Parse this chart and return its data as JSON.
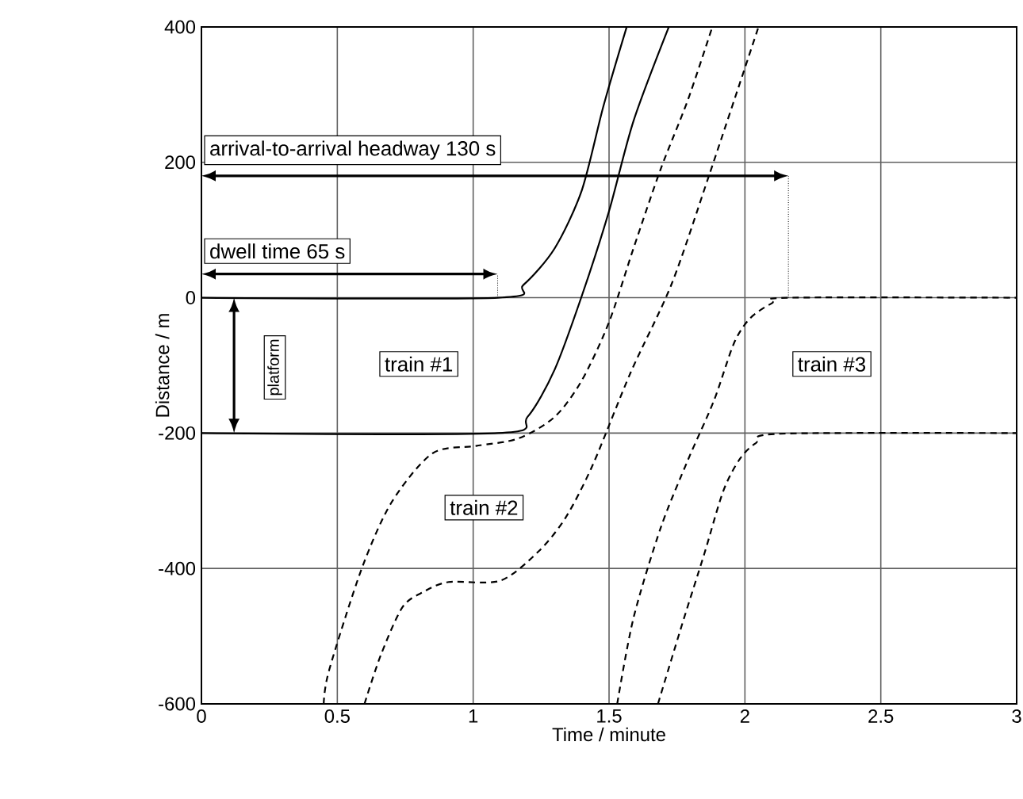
{
  "chart_data": {
    "type": "line",
    "xlabel": "Time / minute",
    "ylabel": "Distance / m",
    "xlim": [
      0,
      3
    ],
    "ylim": [
      -600,
      400
    ],
    "xticks": [
      0,
      0.5,
      1,
      1.5,
      2,
      2.5,
      3
    ],
    "yticks": [
      -600,
      -400,
      -200,
      0,
      200,
      400
    ],
    "grid": true,
    "series": [
      {
        "color": "#000000",
        "line_style": "solid",
        "x": [
          0,
          1.09,
          1.185,
          1.3,
          1.4,
          1.48,
          1.565
        ],
        "values": [
          0,
          0,
          19,
          73,
          159,
          284,
          400
        ]
      },
      {
        "color": "#000000",
        "line_style": "solid",
        "x": [
          0,
          1.09,
          1.2,
          1.3,
          1.4,
          1.5,
          1.59,
          1.72
        ],
        "values": [
          -200,
          -200,
          -176,
          -106,
          3,
          128,
          261,
          400
        ]
      },
      {
        "color": "#000000",
        "line_style": "dashed",
        "x": [
          0.45,
          0.47,
          0.59,
          0.7,
          0.85,
          1.01,
          1.166,
          1.3,
          1.4,
          1.5,
          1.59,
          1.69,
          1.79,
          1.88
        ],
        "values": [
          -600,
          -550,
          -400,
          -302,
          -230,
          -219,
          -208,
          -176,
          -122,
          -36,
          73,
          190,
          292,
          400
        ]
      },
      {
        "color": "#000000",
        "line_style": "dashed",
        "x": [
          0.6,
          0.66,
          0.74,
          0.82,
          0.91,
          1.1,
          1.24,
          1.34,
          1.44,
          1.58,
          1.73,
          1.87,
          2.05
        ],
        "values": [
          -600,
          -528,
          -457,
          -434,
          -420,
          -418,
          -375,
          -325,
          -247,
          -110,
          20,
          183,
          400
        ]
      },
      {
        "color": "#000000",
        "line_style": "dashed",
        "x": [
          1.53,
          1.59,
          1.69,
          1.79,
          1.885,
          1.96,
          2.02,
          2.1,
          2.16,
          3
        ],
        "values": [
          -600,
          -473,
          -340,
          -240,
          -153,
          -67,
          -30,
          -8,
          0,
          0
        ]
      },
      {
        "color": "#000000",
        "line_style": "dashed",
        "x": [
          1.68,
          1.77,
          1.85,
          1.92,
          1.98,
          2.04,
          2.13,
          3
        ],
        "values": [
          -600,
          -481,
          -379,
          -286,
          -239,
          -215,
          -201,
          -200
        ]
      }
    ],
    "annotations": [
      "arrival-to-arrival headway 130 s",
      "dwell time 65 s",
      "platform",
      "train #1",
      "train #2",
      "train #3"
    ]
  }
}
